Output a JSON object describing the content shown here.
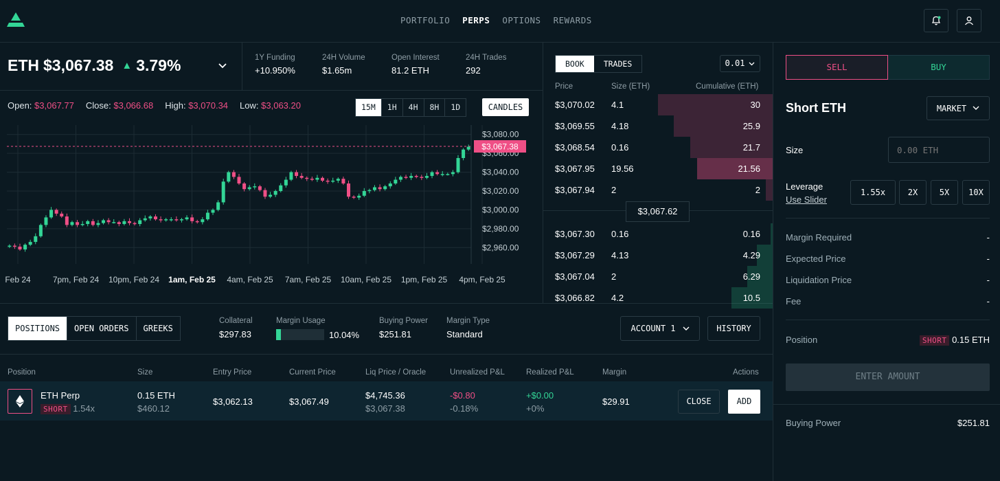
{
  "nav": {
    "links": [
      "PORTFOLIO",
      "PERPS",
      "OPTIONS",
      "REWARDS"
    ],
    "active": "PERPS"
  },
  "icons": {
    "logo": "aevo-logo",
    "bell": "bell-icon",
    "user": "user-icon"
  },
  "colors": {
    "accent_green": "#33d596",
    "accent_pink": "#ef4f86",
    "bg": "#0b1921"
  },
  "ticker": {
    "symbol": "ETH",
    "price": "$3,067.38",
    "change": "3.79%",
    "arrow": "▲"
  },
  "stats": [
    {
      "label": "1Y Funding",
      "value": "+10.950%"
    },
    {
      "label": "24H Volume",
      "value": "$1.65m"
    },
    {
      "label": "Open Interest",
      "value": "81.2 ETH"
    },
    {
      "label": "24H Trades",
      "value": "292"
    }
  ],
  "ohlc": {
    "open_label": "Open:",
    "open": "$3,067.77",
    "close_label": "Close:",
    "close": "$3,066.68",
    "high_label": "High:",
    "high": "$3,070.34",
    "low_label": "Low:",
    "low": "$3,063.20"
  },
  "timeframes": [
    "15M",
    "1H",
    "4H",
    "8H",
    "1D"
  ],
  "timeframe_active": "15M",
  "candles_button": "CANDLES",
  "chart_data": {
    "type": "candlestick",
    "ylim": [
      2950,
      3090
    ],
    "y_ticks": [
      "$3,080.00",
      "$3,060.00",
      "$3,040.00",
      "$3,020.00",
      "$3,000.00",
      "$2,980.00",
      "$2,960.00"
    ],
    "y_tick_values": [
      3080,
      3060,
      3040,
      3020,
      3000,
      2980,
      2960
    ],
    "x_ticks": [
      "Feb 24",
      "7pm, Feb 24",
      "10pm, Feb 24",
      "1am, Feb 25",
      "4am, Feb 25",
      "7am, Feb 25",
      "10am, Feb 25",
      "1pm, Feb 25",
      "4pm, Feb 25"
    ],
    "current_price": 3067.38,
    "current_price_label": "$3,067.38",
    "closes": [
      2962,
      2961,
      2958,
      2963,
      2966,
      2972,
      2984,
      2992,
      3000,
      2996,
      2993,
      2984,
      2987,
      2984,
      2985,
      2988,
      2984,
      2986,
      2989,
      2987,
      2987,
      2985,
      2988,
      2986,
      2985,
      2989,
      2991,
      2993,
      2990,
      2989,
      2990,
      2990,
      2989,
      2990,
      2992,
      2988,
      2987,
      2990,
      2997,
      3000,
      3008,
      3030,
      3040,
      3035,
      3028,
      3022,
      3024,
      3025,
      3021,
      3014,
      3016,
      3020,
      3026,
      3032,
      3040,
      3036,
      3034,
      3033,
      3032,
      3034,
      3031,
      3030,
      3031,
      3033,
      3028,
      3014,
      3013,
      3015,
      3020,
      3021,
      3024,
      3022,
      3025,
      3028,
      3032,
      3035,
      3034,
      3036,
      3035,
      3034,
      3036,
      3040,
      3038,
      3038,
      3038,
      3040,
      3055,
      3064,
      3067
    ]
  },
  "orderbook": {
    "tabs": [
      "BOOK",
      "TRADES"
    ],
    "active_tab": "BOOK",
    "tick": "0.01",
    "headers": {
      "price": "Price",
      "size": "Size (ETH)",
      "cumulative": "Cumulative (ETH)"
    },
    "asks": [
      {
        "price": "$3,070.02",
        "size": "4.1",
        "cum": "30",
        "depth": 0.5
      },
      {
        "price": "$3,069.55",
        "size": "4.18",
        "cum": "25.9",
        "depth": 0.43
      },
      {
        "price": "$3,068.54",
        "size": "0.16",
        "cum": "21.7",
        "depth": 0.36
      },
      {
        "price": "$3,067.95",
        "size": "19.56",
        "cum": "21.56",
        "depth": 0.33
      },
      {
        "price": "$3,067.94",
        "size": "2",
        "cum": "2",
        "depth": 0.03
      }
    ],
    "mid": "$3,067.62",
    "bids": [
      {
        "price": "$3,067.30",
        "size": "0.16",
        "cum": "0.16",
        "depth": 0.01
      },
      {
        "price": "$3,067.29",
        "size": "4.13",
        "cum": "4.29",
        "depth": 0.07
      },
      {
        "price": "$3,067.04",
        "size": "2",
        "cum": "6.29",
        "depth": 0.11
      },
      {
        "price": "$3,066.82",
        "size": "4.2",
        "cum": "10.5",
        "depth": 0.18
      }
    ]
  },
  "positions": {
    "tabs": [
      "POSITIONS",
      "OPEN ORDERS",
      "GREEKS"
    ],
    "active_tab": "POSITIONS",
    "collateral": {
      "label": "Collateral",
      "value": "$297.83"
    },
    "margin_usage": {
      "label": "Margin Usage",
      "value": "10.04%",
      "fraction": 0.1004
    },
    "buying_power": {
      "label": "Buying Power",
      "value": "$251.81"
    },
    "margin_type": {
      "label": "Margin Type",
      "value": "Standard"
    },
    "account_button": "ACCOUNT 1",
    "history_button": "HISTORY",
    "headers": [
      "Position",
      "Size",
      "Entry Price",
      "Current Price",
      "Liq Price / Oracle",
      "Unrealized P&L",
      "Realized P&L",
      "Margin",
      "Actions"
    ],
    "row": {
      "name": "ETH Perp",
      "side": "SHORT",
      "leverage": "1.54x",
      "size": "0.15 ETH",
      "size_usd": "$460.12",
      "entry": "$3,062.13",
      "current": "$3,067.49",
      "liq": "$4,745.36",
      "oracle": "$3,067.38",
      "upnl": "-$0.80",
      "upnl_pct": "-0.18%",
      "rpnl": "+$0.00",
      "rpnl_pct": "+0%",
      "margin": "$29.91",
      "close_button": "CLOSE",
      "add_button": "ADD"
    }
  },
  "order_panel": {
    "sell": "SELL",
    "buy": "BUY",
    "title": "Short ETH",
    "order_type": "MARKET",
    "size_label": "Size",
    "size_placeholder": "0.00 ETH",
    "leverage_label": "Leverage",
    "use_slider": "Use Slider",
    "leverage_options": [
      "1.55x",
      "2X",
      "5X",
      "10X"
    ],
    "rows": [
      {
        "label": "Margin Required",
        "value": "-"
      },
      {
        "label": "Expected Price",
        "value": "-"
      },
      {
        "label": "Liquidation Price",
        "value": "-"
      },
      {
        "label": "Fee",
        "value": "-"
      }
    ],
    "position_label": "Position",
    "position_side": "SHORT",
    "position_value": "0.15 ETH",
    "enter_amount": "ENTER AMOUNT",
    "buying_power_label": "Buying Power",
    "buying_power_value": "$251.81"
  }
}
